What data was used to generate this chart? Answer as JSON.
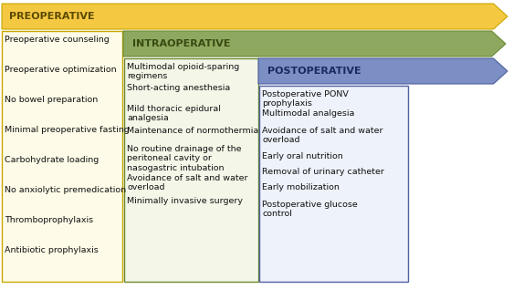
{
  "preoperative_title": "PREOPERATIVE",
  "intraoperative_title": "INTRAOPERATIVE",
  "postoperative_title": "POSTOPERATIVE",
  "preoperative_items": [
    "Preoperative counseling",
    "Preoperative optimization",
    "No bowel preparation",
    "Minimal preoperative fasting",
    "Carbohydrate loading",
    "No anxiolytic premedication",
    "Thromboprophylaxis",
    "Antibiotic prophylaxis"
  ],
  "intraoperative_items": [
    "Multimodal opioid-sparing\nregimens",
    "Short-acting anesthesia",
    "Mild thoracic epidural\nanalgesia",
    "Maintenance of normothermia",
    "No routine drainage of the\nperitoneal cavity or\nnasogastric intubation",
    "Avoidance of salt and water\noverload",
    "Minimally invasive surgery"
  ],
  "postoperative_items": [
    "Postoperative PONV\nprophylaxis",
    "Multimodal analgesia",
    "Avoidance of salt and water\noverload",
    "Early oral nutrition",
    "Removal of urinary catheter",
    "Early mobilization",
    "Postoperative glucose\ncontrol"
  ],
  "arrow1_color": "#F5C842",
  "arrow2_color": "#8FA860",
  "arrow3_color": "#7B8FC4",
  "box1_facecolor": "#FEFCE8",
  "box2_facecolor": "#F4F7E8",
  "box3_facecolor": "#EEF2FA",
  "border1_color": "#C8A800",
  "border2_color": "#6B8A30",
  "border3_color": "#5060A0",
  "title1_color": "#5A4A00",
  "title2_color": "#384A10",
  "title3_color": "#1A2A60",
  "text_color": "#111111",
  "bg_color": "#FFFFFF",
  "text_fontsize": 6.8,
  "title_fontsize": 8.0
}
